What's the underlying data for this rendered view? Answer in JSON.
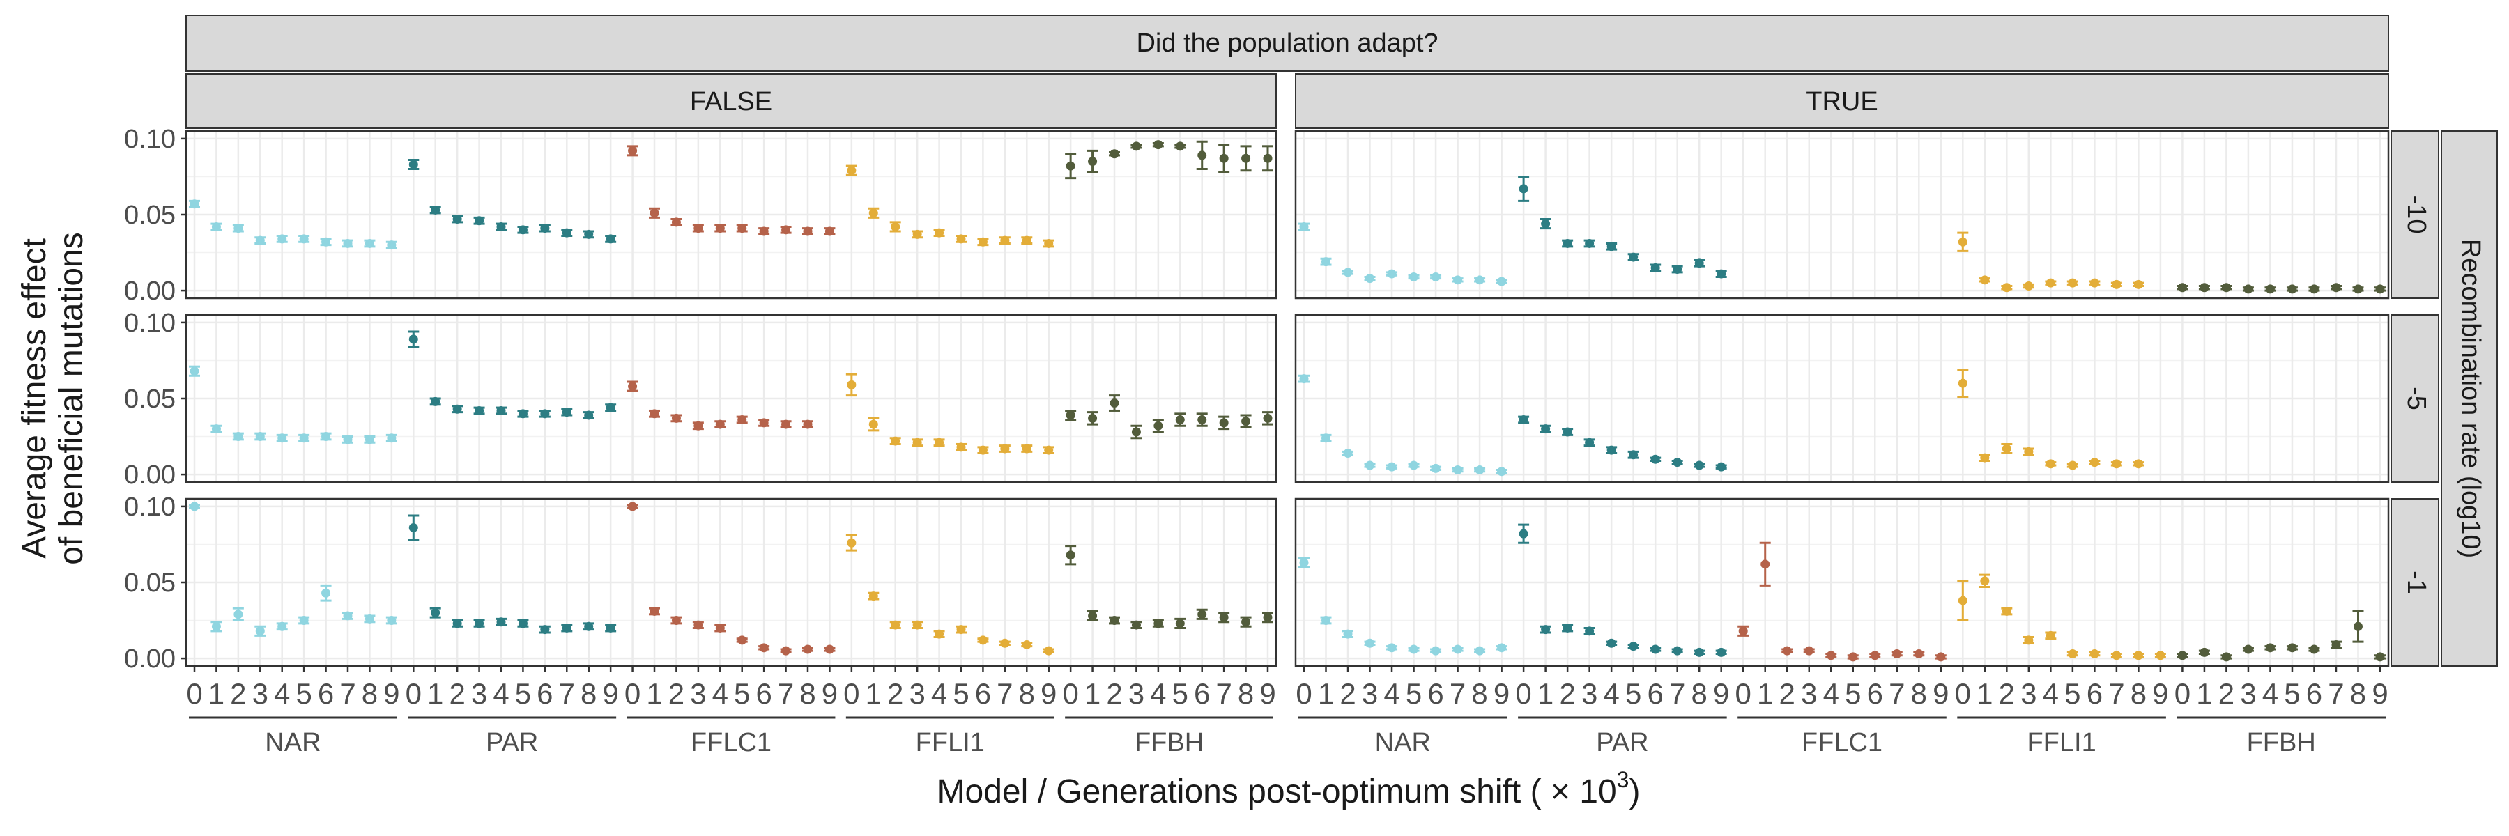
{
  "chart_data": {
    "type": "scatter",
    "title": "",
    "top_strip": "Did the population adapt?",
    "column_strips": [
      "FALSE",
      "TRUE"
    ],
    "row_strips": [
      "-10",
      "-5",
      "-1"
    ],
    "right_strip": "Recombination rate (log10)",
    "ylabel_line1": "Average fitness effect",
    "ylabel_line2": "of beneficial mutations",
    "xlabel_main": "Model / Generations post-optimum shift ( × 10",
    "xlabel_sup": "3",
    "xlabel_close": ")",
    "yticks": [
      "0.00",
      "0.05",
      "0.10"
    ],
    "ylim": [
      -0.005,
      0.105
    ],
    "x_ticks": [
      "0",
      "1",
      "2",
      "3",
      "4",
      "5",
      "6",
      "7",
      "8",
      "9"
    ],
    "grid": true,
    "models": [
      {
        "name": "NAR",
        "color": "#8fd5e0"
      },
      {
        "name": "PAR",
        "color": "#2c7d83"
      },
      {
        "name": "FFLC1",
        "color": "#b5624a"
      },
      {
        "name": "FFLI1",
        "color": "#e3ad38"
      },
      {
        "name": "FFBH",
        "color": "#525c3b"
      }
    ],
    "panels": [
      {
        "row": "-10",
        "col": "FALSE",
        "series": [
          {
            "model": "NAR",
            "values": [
              0.057,
              0.042,
              0.041,
              0.033,
              0.034,
              0.034,
              0.032,
              0.031,
              0.031,
              0.03
            ],
            "errors": [
              0.002,
              0.002,
              0.002,
              0.002,
              0.002,
              0.002,
              0.002,
              0.002,
              0.002,
              0.002
            ]
          },
          {
            "model": "PAR",
            "values": [
              0.083,
              0.053,
              0.047,
              0.046,
              0.042,
              0.04,
              0.041,
              0.038,
              0.037,
              0.034
            ],
            "errors": [
              0.003,
              0.002,
              0.002,
              0.002,
              0.002,
              0.002,
              0.002,
              0.002,
              0.002,
              0.002
            ]
          },
          {
            "model": "FFLC1",
            "values": [
              0.092,
              0.051,
              0.045,
              0.041,
              0.041,
              0.041,
              0.039,
              0.04,
              0.039,
              0.039
            ],
            "errors": [
              0.003,
              0.003,
              0.002,
              0.002,
              0.002,
              0.002,
              0.002,
              0.002,
              0.002,
              0.002
            ]
          },
          {
            "model": "FFLI1",
            "values": [
              0.079,
              0.051,
              0.042,
              0.037,
              0.038,
              0.034,
              0.032,
              0.033,
              0.033,
              0.031
            ],
            "errors": [
              0.003,
              0.003,
              0.003,
              0.002,
              0.002,
              0.002,
              0.002,
              0.002,
              0.002,
              0.002
            ]
          },
          {
            "model": "FFBH",
            "values": [
              0.082,
              0.085,
              0.09,
              0.095,
              0.096,
              0.095,
              0.089,
              0.087,
              0.087,
              0.087
            ],
            "errors": [
              0.008,
              0.007,
              0.001,
              0.001,
              0.001,
              0.001,
              0.009,
              0.009,
              0.008,
              0.008
            ]
          }
        ]
      },
      {
        "row": "-10",
        "col": "TRUE",
        "series": [
          {
            "model": "NAR",
            "values": [
              0.042,
              0.019,
              0.012,
              0.008,
              0.011,
              0.009,
              0.009,
              0.007,
              0.007,
              0.006
            ],
            "errors": [
              0.002,
              0.002,
              0.001,
              0.001,
              0.001,
              0.001,
              0.001,
              0.001,
              0.001,
              0.001
            ]
          },
          {
            "model": "PAR",
            "values": [
              0.067,
              0.044,
              0.031,
              0.031,
              0.029,
              0.022,
              0.015,
              0.014,
              0.018,
              0.011
            ],
            "errors": [
              0.008,
              0.003,
              0.002,
              0.002,
              0.002,
              0.002,
              0.002,
              0.002,
              0.002,
              0.002
            ]
          },
          {
            "model": "FFLC1",
            "values": [
              null,
              null,
              null,
              null,
              null,
              null,
              null,
              null,
              null,
              null
            ],
            "errors": [
              0,
              0,
              0,
              0,
              0,
              0,
              0,
              0,
              0,
              0
            ]
          },
          {
            "model": "FFLI1",
            "values": [
              0.032,
              0.007,
              0.002,
              0.003,
              0.005,
              0.005,
              0.005,
              0.004,
              0.004,
              null
            ],
            "errors": [
              0.006,
              0.001,
              0.001,
              0.001,
              0.001,
              0.001,
              0.001,
              0.001,
              0.001,
              0
            ]
          },
          {
            "model": "FFBH",
            "values": [
              0.002,
              0.002,
              0.002,
              0.001,
              0.001,
              0.001,
              0.001,
              0.002,
              0.001,
              0.001
            ],
            "errors": [
              0.001,
              0.001,
              0.001,
              0.001,
              0.001,
              0.001,
              0.001,
              0.001,
              0.001,
              0.001
            ]
          }
        ]
      },
      {
        "row": "-5",
        "col": "FALSE",
        "series": [
          {
            "model": "NAR",
            "values": [
              0.068,
              0.03,
              0.025,
              0.025,
              0.024,
              0.024,
              0.025,
              0.023,
              0.023,
              0.024
            ],
            "errors": [
              0.003,
              0.002,
              0.002,
              0.002,
              0.002,
              0.002,
              0.002,
              0.002,
              0.002,
              0.002
            ]
          },
          {
            "model": "PAR",
            "values": [
              0.089,
              0.048,
              0.043,
              0.042,
              0.042,
              0.04,
              0.04,
              0.041,
              0.039,
              0.044
            ],
            "errors": [
              0.005,
              0.002,
              0.002,
              0.002,
              0.002,
              0.002,
              0.002,
              0.002,
              0.002,
              0.002
            ]
          },
          {
            "model": "FFLC1",
            "values": [
              0.058,
              0.04,
              0.037,
              0.032,
              0.033,
              0.036,
              0.034,
              0.033,
              0.033,
              null
            ],
            "errors": [
              0.003,
              0.002,
              0.002,
              0.002,
              0.002,
              0.002,
              0.002,
              0.002,
              0.002,
              0
            ]
          },
          {
            "model": "FFLI1",
            "values": [
              0.059,
              0.033,
              0.022,
              0.021,
              0.021,
              0.018,
              0.016,
              0.017,
              0.017,
              0.016
            ],
            "errors": [
              0.007,
              0.004,
              0.002,
              0.002,
              0.002,
              0.002,
              0.002,
              0.002,
              0.002,
              0.002
            ]
          },
          {
            "model": "FFBH",
            "values": [
              0.039,
              0.037,
              0.047,
              0.028,
              0.032,
              0.036,
              0.036,
              0.034,
              0.035,
              0.037
            ],
            "errors": [
              0.003,
              0.004,
              0.005,
              0.004,
              0.004,
              0.004,
              0.004,
              0.004,
              0.004,
              0.004
            ]
          }
        ]
      },
      {
        "row": "-5",
        "col": "TRUE",
        "series": [
          {
            "model": "NAR",
            "values": [
              0.063,
              0.024,
              0.014,
              0.006,
              0.005,
              0.006,
              0.004,
              0.003,
              0.003,
              0.002
            ],
            "errors": [
              0.002,
              0.002,
              0.001,
              0.001,
              0.001,
              0.001,
              0.001,
              0.001,
              0.001,
              0.001
            ]
          },
          {
            "model": "PAR",
            "values": [
              0.036,
              0.03,
              0.028,
              0.021,
              0.016,
              0.013,
              0.01,
              0.008,
              0.006,
              0.005
            ],
            "errors": [
              0.002,
              0.002,
              0.002,
              0.002,
              0.002,
              0.002,
              0.001,
              0.001,
              0.001,
              0.001
            ]
          },
          {
            "model": "FFLC1",
            "values": [
              null,
              null,
              null,
              null,
              null,
              null,
              null,
              null,
              null,
              null
            ],
            "errors": [
              0,
              0,
              0,
              0,
              0,
              0,
              0,
              0,
              0,
              0
            ]
          },
          {
            "model": "FFLI1",
            "values": [
              0.06,
              0.011,
              0.017,
              0.015,
              0.007,
              0.006,
              0.008,
              0.007,
              0.007,
              null
            ],
            "errors": [
              0.009,
              0.002,
              0.003,
              0.002,
              0.001,
              0.001,
              0.001,
              0.001,
              0.001,
              0
            ]
          },
          {
            "model": "FFBH",
            "values": [
              null,
              null,
              null,
              null,
              null,
              null,
              null,
              null,
              null,
              null
            ],
            "errors": [
              0,
              0,
              0,
              0,
              0,
              0,
              0,
              0,
              0,
              0
            ]
          }
        ]
      },
      {
        "row": "-1",
        "col": "FALSE",
        "series": [
          {
            "model": "NAR",
            "values": [
              0.1,
              0.021,
              0.029,
              0.018,
              0.021,
              0.025,
              0.043,
              0.028,
              0.026,
              0.025
            ],
            "errors": [
              0.001,
              0.003,
              0.004,
              0.003,
              0.002,
              0.002,
              0.005,
              0.002,
              0.002,
              0.002
            ]
          },
          {
            "model": "PAR",
            "values": [
              0.086,
              0.03,
              0.023,
              0.023,
              0.024,
              0.023,
              0.019,
              0.02,
              0.021,
              0.02
            ],
            "errors": [
              0.008,
              0.003,
              0.002,
              0.002,
              0.002,
              0.002,
              0.002,
              0.002,
              0.002,
              0.002
            ]
          },
          {
            "model": "FFLC1",
            "values": [
              0.1,
              0.031,
              0.025,
              0.022,
              0.02,
              0.012,
              0.007,
              0.005,
              0.006,
              0.006
            ],
            "errors": [
              0.001,
              0.002,
              0.002,
              0.002,
              0.002,
              0.001,
              0.001,
              0.001,
              0.001,
              0.001
            ]
          },
          {
            "model": "FFLI1",
            "values": [
              0.076,
              0.041,
              0.022,
              0.022,
              0.016,
              0.019,
              0.012,
              0.01,
              0.009,
              0.005
            ],
            "errors": [
              0.005,
              0.002,
              0.002,
              0.002,
              0.002,
              0.002,
              0.001,
              0.001,
              0.001,
              0.001
            ]
          },
          {
            "model": "FFBH",
            "values": [
              0.068,
              0.028,
              0.025,
              0.022,
              0.023,
              0.023,
              0.029,
              0.027,
              0.024,
              0.027
            ],
            "errors": [
              0.006,
              0.003,
              0.002,
              0.002,
              0.002,
              0.003,
              0.003,
              0.003,
              0.003,
              0.003
            ]
          }
        ]
      },
      {
        "row": "-1",
        "col": "TRUE",
        "series": [
          {
            "model": "NAR",
            "values": [
              0.063,
              0.025,
              0.016,
              0.01,
              0.007,
              0.006,
              0.005,
              0.006,
              0.005,
              0.007
            ],
            "errors": [
              0.003,
              0.002,
              0.002,
              0.001,
              0.001,
              0.001,
              0.001,
              0.001,
              0.001,
              0.001
            ]
          },
          {
            "model": "PAR",
            "values": [
              0.082,
              0.019,
              0.02,
              0.018,
              0.01,
              0.008,
              0.006,
              0.005,
              0.004,
              0.004
            ],
            "errors": [
              0.006,
              0.002,
              0.002,
              0.002,
              0.001,
              0.001,
              0.001,
              0.001,
              0.001,
              0.001
            ]
          },
          {
            "model": "FFLC1",
            "values": [
              0.018,
              0.062,
              0.005,
              0.005,
              0.002,
              0.001,
              0.002,
              0.003,
              0.003,
              0.001
            ],
            "errors": [
              0.003,
              0.014,
              0.001,
              0.001,
              0.001,
              0.001,
              0.001,
              0.001,
              0.001,
              0.001
            ]
          },
          {
            "model": "FFLI1",
            "values": [
              0.038,
              0.051,
              0.031,
              0.012,
              0.015,
              0.003,
              0.003,
              0.002,
              0.002,
              0.002
            ],
            "errors": [
              0.013,
              0.004,
              0.002,
              0.002,
              0.002,
              0.001,
              0.001,
              0.001,
              0.001,
              0.001
            ]
          },
          {
            "model": "FFBH",
            "values": [
              0.002,
              0.004,
              0.001,
              0.006,
              0.007,
              0.007,
              0.006,
              0.009,
              0.021,
              0.001
            ],
            "errors": [
              0.001,
              0.001,
              0.001,
              0.001,
              0.001,
              0.001,
              0.001,
              0.002,
              0.01,
              0.001
            ]
          }
        ]
      }
    ]
  }
}
